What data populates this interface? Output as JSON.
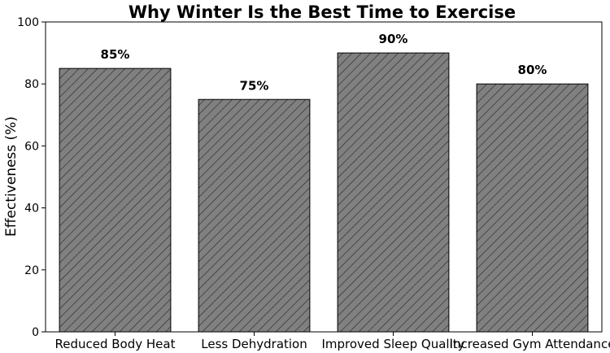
{
  "chart_data": {
    "type": "bar",
    "title": "Why Winter Is the Best Time to Exercise",
    "xlabel": "",
    "ylabel": "Effectiveness (%)",
    "categories": [
      "Reduced Body Heat",
      "Less Dehydration",
      "Improved Sleep Quality",
      "Increased Gym Attendance"
    ],
    "values": [
      85,
      75,
      90,
      80
    ],
    "data_labels": [
      "85%",
      "75%",
      "90%",
      "80%"
    ],
    "ylim": [
      0,
      100
    ],
    "yticks": [
      0,
      20,
      40,
      60,
      80,
      100
    ],
    "ytick_labels": [
      "0",
      "20",
      "40",
      "60",
      "80",
      "100"
    ],
    "grid": false,
    "bar_color": "#808080",
    "bar_edge_color": "#000000",
    "bar_pattern": "diagonal-hatch"
  }
}
